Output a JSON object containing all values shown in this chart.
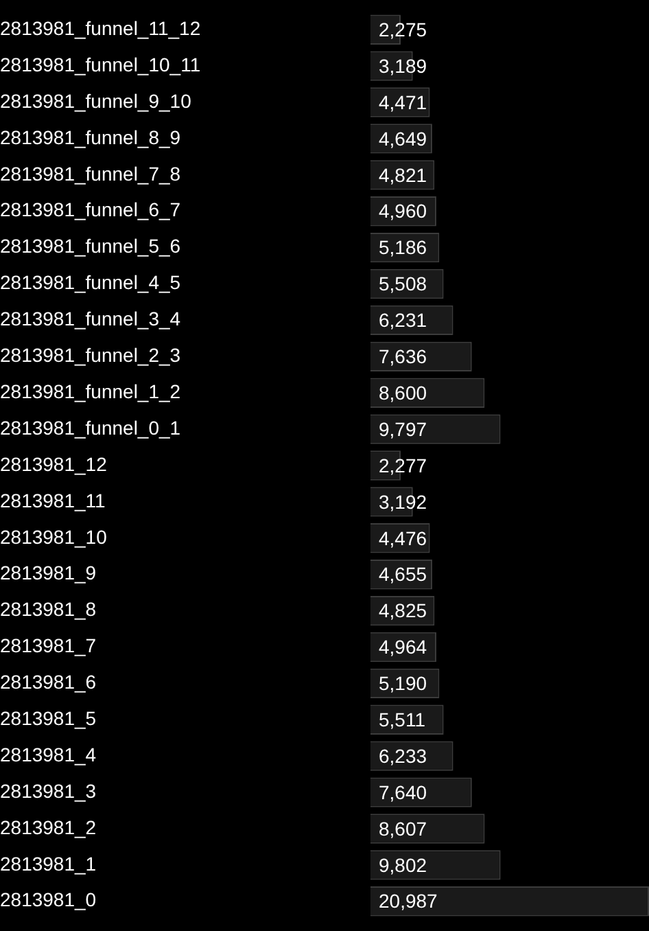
{
  "chart_data": {
    "type": "bar",
    "orientation": "horizontal",
    "legend": false,
    "categories": [
      "2813981_funnel_11_12",
      "2813981_funnel_10_11",
      "2813981_funnel_9_10",
      "2813981_funnel_8_9",
      "2813981_funnel_7_8",
      "2813981_funnel_6_7",
      "2813981_funnel_5_6",
      "2813981_funnel_4_5",
      "2813981_funnel_3_4",
      "2813981_funnel_2_3",
      "2813981_funnel_1_2",
      "2813981_funnel_0_1",
      "2813981_12",
      "2813981_11",
      "2813981_10",
      "2813981_9",
      "2813981_8",
      "2813981_7",
      "2813981_6",
      "2813981_5",
      "2813981_4",
      "2813981_3",
      "2813981_2",
      "2813981_1",
      "2813981_0"
    ],
    "series": [
      {
        "color": "#1a1a1a",
        "values": [
          2275,
          3189,
          4471,
          4649,
          4821,
          4960,
          5186,
          5508,
          6231,
          7636,
          8600,
          9797,
          2277,
          3192,
          4476,
          4655,
          4825,
          4964,
          5190,
          5511,
          6233,
          7640,
          8607,
          9802,
          20987
        ],
        "value_labels": [
          "2,275",
          "3,189",
          "4,471",
          "4,649",
          "4,821",
          "4,960",
          "5,186",
          "5,508",
          "6,231",
          "7,636",
          "8,600",
          "9,797",
          "2,277",
          "3,192",
          "4,476",
          "4,655",
          "4,825",
          "4,964",
          "5,190",
          "5,511",
          "6,233",
          "7,640",
          "8,607",
          "9,802",
          "20,987"
        ]
      }
    ]
  }
}
